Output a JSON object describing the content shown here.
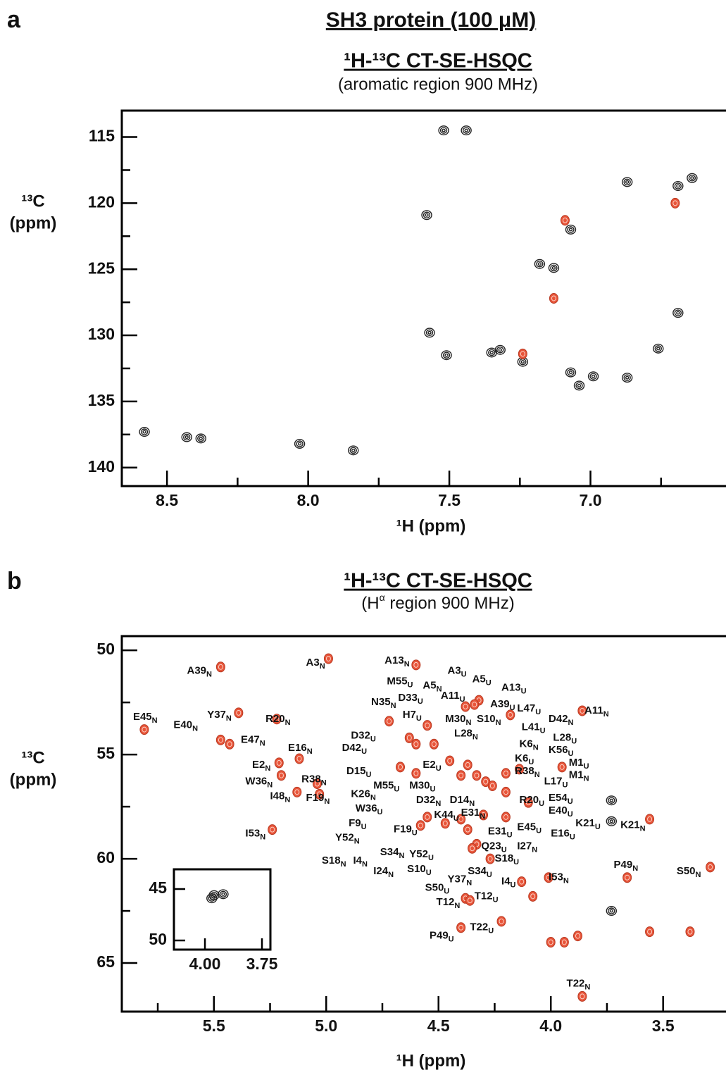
{
  "figure_title": "SH3 protein (100 μM)",
  "chart_data": [
    {
      "type": "scatter",
      "panel": "a",
      "title": "¹H-¹³C CT-SE-HSQC",
      "subtitle": "(aromatic region 900 MHz)",
      "xlabel": "¹H (ppm)",
      "ylabel": [
        "¹³C",
        "(ppm)"
      ],
      "xlim": [
        8.66,
        6.52
      ],
      "ylim": [
        141.4,
        113
      ],
      "xticks": [
        8.5,
        {
          "value": 8,
          "label": "8.0"
        },
        7.5,
        {
          "value": 7,
          "label": "7.0"
        }
      ],
      "xminorticks": [
        8.25,
        7.75,
        7.25,
        6.75
      ],
      "yticks": [
        115,
        120,
        125,
        130,
        135,
        140
      ],
      "yminorticks": [
        117.5,
        122.5,
        127.5,
        132.5,
        137.5
      ],
      "series": [
        {
          "color": "#222222",
          "x": [
            7.52,
            7.44,
            6.87,
            6.69,
            6.64,
            7.58,
            7.07,
            7.18,
            7.13,
            6.69,
            7.57,
            7.51,
            7.35,
            7.32,
            7.24,
            6.76,
            7.07,
            6.99,
            7.04,
            6.87,
            8.58,
            8.43,
            8.38,
            8.03,
            7.84
          ],
          "values": [
            114.5,
            114.5,
            118.4,
            118.7,
            118.1,
            120.9,
            122.0,
            124.6,
            124.9,
            128.3,
            129.8,
            131.5,
            131.3,
            131.1,
            132.0,
            131.0,
            132.8,
            133.1,
            133.8,
            133.2,
            137.3,
            137.7,
            137.8,
            138.2,
            138.7
          ]
        },
        {
          "color": "#e8553a",
          "x": [
            7.09,
            6.7,
            7.13,
            7.24
          ],
          "values": [
            121.3,
            120.0,
            127.2,
            131.4
          ]
        }
      ]
    },
    {
      "type": "scatter",
      "panel": "b",
      "title": "¹H-¹³C CT-SE-HSQC",
      "subtitle": {
        "text": "(H",
        "sup": "α",
        "rest": " region 900 MHz)"
      },
      "xlabel": "¹H (ppm)",
      "ylabel": [
        "¹³C",
        "(ppm)"
      ],
      "xlim": [
        5.91,
        3.22
      ],
      "ylim": [
        67.33,
        49.32
      ],
      "xticks": [
        5.5,
        {
          "value": 5,
          "label": "5.0"
        },
        4.5,
        {
          "value": 4,
          "label": "4.0"
        },
        3.5
      ],
      "xminorticks": [
        5.75,
        5.25,
        4.75,
        4.25,
        3.75
      ],
      "yticks": [
        50,
        55,
        60,
        65
      ],
      "yminorticks": [
        52.5,
        57.5,
        62.5
      ],
      "series": [
        {
          "color": "#e8553a",
          "x": [
            5.47,
            4.99,
            4.6,
            5.81,
            5.39,
            5.22,
            5.43,
            5.47,
            5.12,
            5.21,
            5.2,
            5.13,
            5.04,
            5.03,
            5.24,
            3.86,
            3.95,
            3.56,
            3.66,
            3.29,
            4.01,
            4.13,
            4.08,
            4.38,
            4.36,
            4.22,
            4.4,
            4.0,
            3.94,
            3.88,
            3.56,
            3.38,
            3.86,
            4.67,
            4.72,
            4.63,
            4.6,
            4.37,
            4.33,
            4.29,
            4.26,
            4.4,
            4.45,
            4.2,
            4.14,
            4.2,
            4.1,
            4.2,
            4.3,
            4.4,
            4.47,
            4.37,
            4.33,
            4.27,
            4.35,
            4.55,
            4.58,
            4.6,
            4.32,
            4.34,
            4.38,
            4.18,
            4.52,
            4.55
          ],
          "values": [
            50.8,
            50.4,
            50.7,
            53.8,
            53.0,
            53.3,
            54.5,
            54.3,
            55.2,
            55.4,
            56.0,
            56.8,
            56.4,
            56.9,
            58.6,
            52.9,
            55.6,
            58.1,
            60.9,
            60.4,
            60.9,
            61.1,
            61.8,
            61.9,
            62.0,
            63.0,
            63.3,
            64.0,
            64.0,
            63.7,
            63.5,
            63.5,
            66.6,
            55.6,
            53.4,
            54.2,
            54.5,
            55.5,
            56.0,
            56.3,
            56.5,
            56.0,
            55.3,
            56.8,
            55.7,
            55.9,
            57.3,
            58.0,
            57.9,
            58.1,
            58.3,
            58.6,
            59.3,
            60.0,
            59.5,
            58.0,
            58.4,
            55.9,
            52.4,
            52.6,
            52.7,
            53.1,
            54.5,
            53.6
          ]
        },
        {
          "color": "#222222",
          "x": [
            3.73,
            3.73,
            3.73
          ],
          "values": [
            57.2,
            58.2,
            62.5
          ]
        }
      ],
      "annotations": [
        {
          "text": "A39",
          "sub": "N",
          "x": 5.62,
          "y": 51.0
        },
        {
          "text": "A3",
          "sub": "N",
          "x": 5.09,
          "y": 50.6
        },
        {
          "text": "A13",
          "sub": "N",
          "x": 4.74,
          "y": 50.5
        },
        {
          "text": "A3",
          "sub": "U",
          "x": 4.46,
          "y": 51.0
        },
        {
          "text": "A5",
          "sub": "U",
          "x": 4.35,
          "y": 51.4
        },
        {
          "text": "A13",
          "sub": "U",
          "x": 4.22,
          "y": 51.8
        },
        {
          "text": "M55",
          "sub": "U",
          "x": 4.73,
          "y": 51.5
        },
        {
          "text": "A5",
          "sub": "N",
          "x": 4.57,
          "y": 51.7
        },
        {
          "text": "D33",
          "sub": "U",
          "x": 4.68,
          "y": 52.3
        },
        {
          "text": "A11",
          "sub": "U",
          "x": 4.49,
          "y": 52.2
        },
        {
          "text": "A39",
          "sub": "U",
          "x": 4.27,
          "y": 52.6
        },
        {
          "text": "L47",
          "sub": "U",
          "x": 4.15,
          "y": 52.8
        },
        {
          "text": "A11",
          "sub": "N",
          "x": 3.85,
          "y": 52.9
        },
        {
          "text": "N35",
          "sub": "N",
          "x": 4.8,
          "y": 52.5
        },
        {
          "text": "E45",
          "sub": "N",
          "x": 5.86,
          "y": 53.2
        },
        {
          "text": "Y37",
          "sub": "N",
          "x": 5.53,
          "y": 53.1
        },
        {
          "text": "R20",
          "sub": "N",
          "x": 5.27,
          "y": 53.3
        },
        {
          "text": "E40",
          "sub": "N",
          "x": 5.68,
          "y": 53.6
        },
        {
          "text": "H7",
          "sub": "U",
          "x": 4.66,
          "y": 53.1
        },
        {
          "text": "M30",
          "sub": "N",
          "x": 4.47,
          "y": 53.3
        },
        {
          "text": "S10",
          "sub": "N",
          "x": 4.33,
          "y": 53.3
        },
        {
          "text": "D42",
          "sub": "N",
          "x": 4.01,
          "y": 53.3
        },
        {
          "text": "E47",
          "sub": "N",
          "x": 5.38,
          "y": 54.3
        },
        {
          "text": "L41",
          "sub": "U",
          "x": 4.13,
          "y": 53.7
        },
        {
          "text": "D32",
          "sub": "U",
          "x": 4.89,
          "y": 54.1
        },
        {
          "text": "L28",
          "sub": "N",
          "x": 4.43,
          "y": 54.0
        },
        {
          "text": "L28",
          "sub": "U",
          "x": 3.99,
          "y": 54.2
        },
        {
          "text": "K6",
          "sub": "N",
          "x": 4.14,
          "y": 54.5
        },
        {
          "text": "K56",
          "sub": "U",
          "x": 4.01,
          "y": 54.8
        },
        {
          "text": "E16",
          "sub": "N",
          "x": 5.17,
          "y": 54.7
        },
        {
          "text": "D42",
          "sub": "U",
          "x": 4.93,
          "y": 54.7
        },
        {
          "text": "E2",
          "sub": "N",
          "x": 5.33,
          "y": 55.5
        },
        {
          "text": "E2",
          "sub": "U",
          "x": 4.57,
          "y": 55.5
        },
        {
          "text": "K6",
          "sub": "U",
          "x": 4.16,
          "y": 55.2
        },
        {
          "text": "M1",
          "sub": "U",
          "x": 3.92,
          "y": 55.4
        },
        {
          "text": "D15",
          "sub": "U",
          "x": 4.91,
          "y": 55.8
        },
        {
          "text": "R38",
          "sub": "N",
          "x": 4.16,
          "y": 55.8
        },
        {
          "text": "M1",
          "sub": "N",
          "x": 3.92,
          "y": 56.0
        },
        {
          "text": "W36",
          "sub": "N",
          "x": 5.36,
          "y": 56.3
        },
        {
          "text": "R38",
          "sub": "N",
          "x": 5.11,
          "y": 56.2
        },
        {
          "text": "M55",
          "sub": "U",
          "x": 4.79,
          "y": 56.5
        },
        {
          "text": "M30",
          "sub": "U",
          "x": 4.63,
          "y": 56.5
        },
        {
          "text": "L17",
          "sub": "U",
          "x": 4.03,
          "y": 56.3
        },
        {
          "text": "I48",
          "sub": "N",
          "x": 5.25,
          "y": 57.0
        },
        {
          "text": "F19",
          "sub": "N",
          "x": 5.09,
          "y": 57.1
        },
        {
          "text": "K26",
          "sub": "N",
          "x": 4.89,
          "y": 56.9
        },
        {
          "text": "D32",
          "sub": "N",
          "x": 4.6,
          "y": 57.2
        },
        {
          "text": "D14",
          "sub": "N",
          "x": 4.45,
          "y": 57.2
        },
        {
          "text": "E54",
          "sub": "U",
          "x": 4.01,
          "y": 57.1
        },
        {
          "text": "R20",
          "sub": "U",
          "x": 4.14,
          "y": 57.2
        },
        {
          "text": "W36",
          "sub": "U",
          "x": 4.87,
          "y": 57.6
        },
        {
          "text": "K44",
          "sub": "U",
          "x": 4.52,
          "y": 57.9
        },
        {
          "text": "E31",
          "sub": "N",
          "x": 4.4,
          "y": 57.8
        },
        {
          "text": "E40",
          "sub": "U",
          "x": 4.01,
          "y": 57.7
        },
        {
          "text": "F9",
          "sub": "U",
          "x": 4.9,
          "y": 58.3
        },
        {
          "text": "K21",
          "sub": "U",
          "x": 3.89,
          "y": 58.3
        },
        {
          "text": "K21",
          "sub": "N",
          "x": 3.69,
          "y": 58.4
        },
        {
          "text": "E31",
          "sub": "U",
          "x": 4.28,
          "y": 58.7
        },
        {
          "text": "E45",
          "sub": "U",
          "x": 4.15,
          "y": 58.5
        },
        {
          "text": "E16",
          "sub": "U",
          "x": 4.0,
          "y": 58.8
        },
        {
          "text": "I53",
          "sub": "N",
          "x": 5.36,
          "y": 58.8
        },
        {
          "text": "F19",
          "sub": "U",
          "x": 4.7,
          "y": 58.6
        },
        {
          "text": "Y52",
          "sub": "N",
          "x": 4.96,
          "y": 59.0
        },
        {
          "text": "Q23",
          "sub": "U",
          "x": 4.31,
          "y": 59.4
        },
        {
          "text": "I27",
          "sub": "N",
          "x": 4.15,
          "y": 59.4
        },
        {
          "text": "S34",
          "sub": "N",
          "x": 4.76,
          "y": 59.7
        },
        {
          "text": "Y52",
          "sub": "U",
          "x": 4.63,
          "y": 59.8
        },
        {
          "text": "S18",
          "sub": "U",
          "x": 4.25,
          "y": 60.0
        },
        {
          "text": "S18",
          "sub": "N",
          "x": 5.02,
          "y": 60.1
        },
        {
          "text": "I4",
          "sub": "N",
          "x": 4.88,
          "y": 60.1
        },
        {
          "text": "S10",
          "sub": "U",
          "x": 4.64,
          "y": 60.5
        },
        {
          "text": "I24",
          "sub": "N",
          "x": 4.79,
          "y": 60.6
        },
        {
          "text": "S34",
          "sub": "U",
          "x": 4.37,
          "y": 60.6
        },
        {
          "text": "P49",
          "sub": "N",
          "x": 3.72,
          "y": 60.3
        },
        {
          "text": "S50",
          "sub": "N",
          "x": 3.44,
          "y": 60.6
        },
        {
          "text": "Y37",
          "sub": "N",
          "x": 4.46,
          "y": 61.0
        },
        {
          "text": "I53",
          "sub": "N",
          "x": 4.01,
          "y": 60.9
        },
        {
          "text": "I4",
          "sub": "U",
          "x": 4.22,
          "y": 61.1
        },
        {
          "text": "S50",
          "sub": "U",
          "x": 4.56,
          "y": 61.4
        },
        {
          "text": "T12",
          "sub": "N",
          "x": 4.51,
          "y": 62.1
        },
        {
          "text": "T12",
          "sub": "U",
          "x": 4.34,
          "y": 61.8
        },
        {
          "text": "T22",
          "sub": "U",
          "x": 4.36,
          "y": 63.3
        },
        {
          "text": "P49",
          "sub": "U",
          "x": 4.54,
          "y": 63.7
        },
        {
          "text": "T22",
          "sub": "N",
          "x": 3.93,
          "y": 66.0
        }
      ]
    },
    {
      "type": "scatter",
      "inset": true,
      "xlim": [
        4.136,
        3.713
      ],
      "ylim": [
        50.89,
        43.08
      ],
      "xticks": [
        {
          "value": 4,
          "label": "4.00"
        },
        3.75
      ],
      "yticks": [
        45,
        50
      ],
      "series": [
        {
          "color": "#222222",
          "x": [
            3.97,
            3.96,
            3.92
          ],
          "values": [
            45.9,
            45.6,
            45.5
          ]
        }
      ]
    }
  ]
}
